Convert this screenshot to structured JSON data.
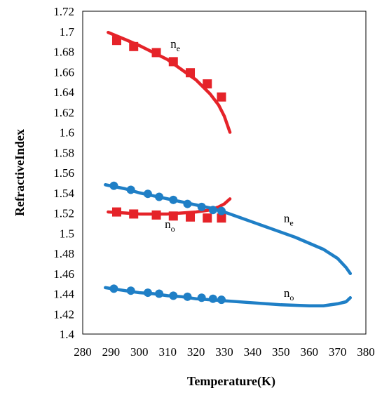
{
  "chart_data": {
    "type": "line",
    "xlabel": "Temperature(K)",
    "ylabel": "RefractiveIndex",
    "xlim": [
      280,
      380
    ],
    "ylim": [
      1.4,
      1.72
    ],
    "xticks": [
      "280",
      "290",
      "300",
      "310",
      "320",
      "330",
      "340",
      "350",
      "360",
      "370",
      "380"
    ],
    "yticks": [
      "1.4",
      "1.42",
      "1.44",
      "1.46",
      "1.48",
      "1.5",
      "1.52",
      "1.54",
      "1.56",
      "1.58",
      "1.6",
      "1.62",
      "1.64",
      "1.66",
      "1.68",
      "1.7",
      "1.72"
    ],
    "grid": false,
    "color_red": "#e52329",
    "color_blue": "#1f7fc6",
    "series": [
      {
        "kind": "curve",
        "color": "red",
        "x": [
          289,
          295,
          300,
          305,
          310,
          315,
          320,
          325,
          328,
          330,
          332
        ],
        "y": [
          1.699,
          1.692,
          1.686,
          1.679,
          1.672,
          1.662,
          1.652,
          1.638,
          1.627,
          1.616,
          1.6
        ]
      },
      {
        "kind": "markers",
        "marker": "square",
        "color": "red",
        "x": [
          292,
          298,
          306,
          312,
          318,
          324,
          329
        ],
        "y": [
          1.691,
          1.685,
          1.679,
          1.67,
          1.659,
          1.648,
          1.635
        ]
      },
      {
        "kind": "curve",
        "color": "red",
        "x": [
          289,
          295,
          300,
          305,
          310,
          315,
          320,
          325,
          328,
          330,
          332
        ],
        "y": [
          1.521,
          1.52,
          1.519,
          1.519,
          1.519,
          1.52,
          1.521,
          1.523,
          1.526,
          1.529,
          1.534
        ]
      },
      {
        "kind": "markers",
        "marker": "square",
        "color": "red",
        "x": [
          292,
          298,
          306,
          312,
          318,
          324,
          329
        ],
        "y": [
          1.521,
          1.519,
          1.518,
          1.517,
          1.516,
          1.515,
          1.515
        ]
      },
      {
        "kind": "curve",
        "color": "blue",
        "x": [
          288,
          295,
          300,
          305,
          310,
          315,
          320,
          325,
          330,
          335,
          340,
          345,
          350,
          355,
          360,
          365,
          370,
          373,
          374.5
        ],
        "y": [
          1.548,
          1.544,
          1.54,
          1.537,
          1.534,
          1.531,
          1.528,
          1.525,
          1.521,
          1.516,
          1.511,
          1.506,
          1.501,
          1.496,
          1.49,
          1.484,
          1.475,
          1.466,
          1.46
        ]
      },
      {
        "kind": "markers",
        "marker": "circle",
        "color": "blue",
        "x": [
          291,
          297,
          303,
          307,
          312,
          317,
          322,
          326,
          329
        ],
        "y": [
          1.547,
          1.543,
          1.539,
          1.536,
          1.533,
          1.529,
          1.526,
          1.523,
          1.522
        ]
      },
      {
        "kind": "curve",
        "color": "blue",
        "x": [
          288,
          295,
          300,
          305,
          310,
          315,
          320,
          325,
          330,
          340,
          350,
          360,
          365,
          370,
          373,
          374.5
        ],
        "y": [
          1.446,
          1.443,
          1.441,
          1.44,
          1.438,
          1.437,
          1.435,
          1.434,
          1.433,
          1.431,
          1.429,
          1.428,
          1.428,
          1.43,
          1.432,
          1.436
        ]
      },
      {
        "kind": "markers",
        "marker": "circle",
        "color": "blue",
        "x": [
          291,
          297,
          303,
          307,
          312,
          317,
          322,
          326,
          329
        ],
        "y": [
          1.445,
          1.443,
          1.441,
          1.44,
          1.438,
          1.437,
          1.436,
          1.435,
          1.434
        ]
      }
    ],
    "annotations": [
      {
        "main": "n",
        "sub": "e",
        "x": 311,
        "y": 1.684
      },
      {
        "main": "n",
        "sub": "o",
        "x": 309,
        "y": 1.505
      },
      {
        "main": "n",
        "sub": "e",
        "x": 351,
        "y": 1.511
      },
      {
        "main": "n",
        "sub": "o",
        "x": 351,
        "y": 1.437
      }
    ]
  }
}
